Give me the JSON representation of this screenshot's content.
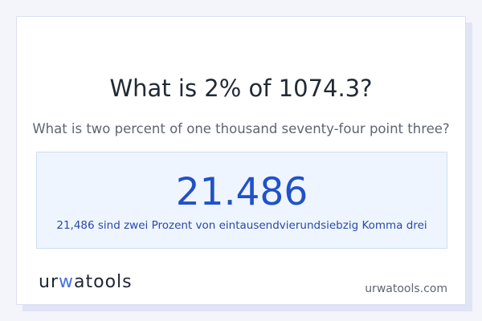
{
  "title": "What is 2% of 1074.3?",
  "subtitle": "What is two percent of one thousand seventy-four point three?",
  "result": {
    "value": "21.486",
    "words": "21,486 sind zwei Prozent von eintausendvierundsiebzig Komma drei"
  },
  "logo": {
    "part1": "ur",
    "part2": "w",
    "part3": "atools"
  },
  "site": "urwatools.com",
  "colors": {
    "accent": "#2151c9",
    "result_bg": "#eef5fe"
  }
}
